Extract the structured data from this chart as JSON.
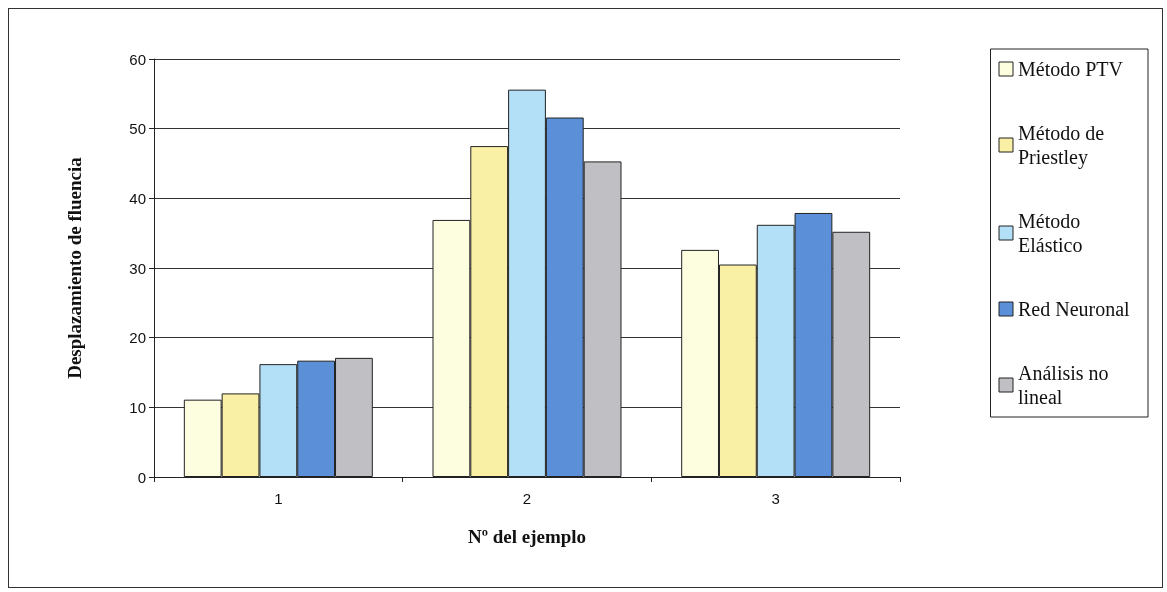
{
  "chart_data": {
    "type": "bar",
    "xlabel": "Nº del ejemplo",
    "ylabel": "Desplazamiento de fluencia",
    "categories": [
      "1",
      "2",
      "3"
    ],
    "series": [
      {
        "name": "Método PTV",
        "color": "#fdfde0",
        "values": [
          11.1,
          36.9,
          32.6
        ]
      },
      {
        "name": "Método de Priestley",
        "color": "#f9f0a6",
        "values": [
          12.0,
          47.5,
          30.5
        ]
      },
      {
        "name": "Método Elástico",
        "color": "#b3e0f7",
        "values": [
          16.2,
          55.6,
          36.2
        ]
      },
      {
        "name": "Red Neuronal",
        "color": "#5b8fd8",
        "values": [
          16.7,
          51.6,
          37.9
        ]
      },
      {
        "name": "Análisis no lineal",
        "color": "#c0c0c4",
        "values": [
          17.1,
          45.3,
          35.2
        ]
      }
    ],
    "ylim": [
      0,
      60
    ],
    "yticks": [
      0,
      10,
      20,
      30,
      40,
      50,
      60
    ],
    "grid": "y",
    "legend": "right"
  }
}
